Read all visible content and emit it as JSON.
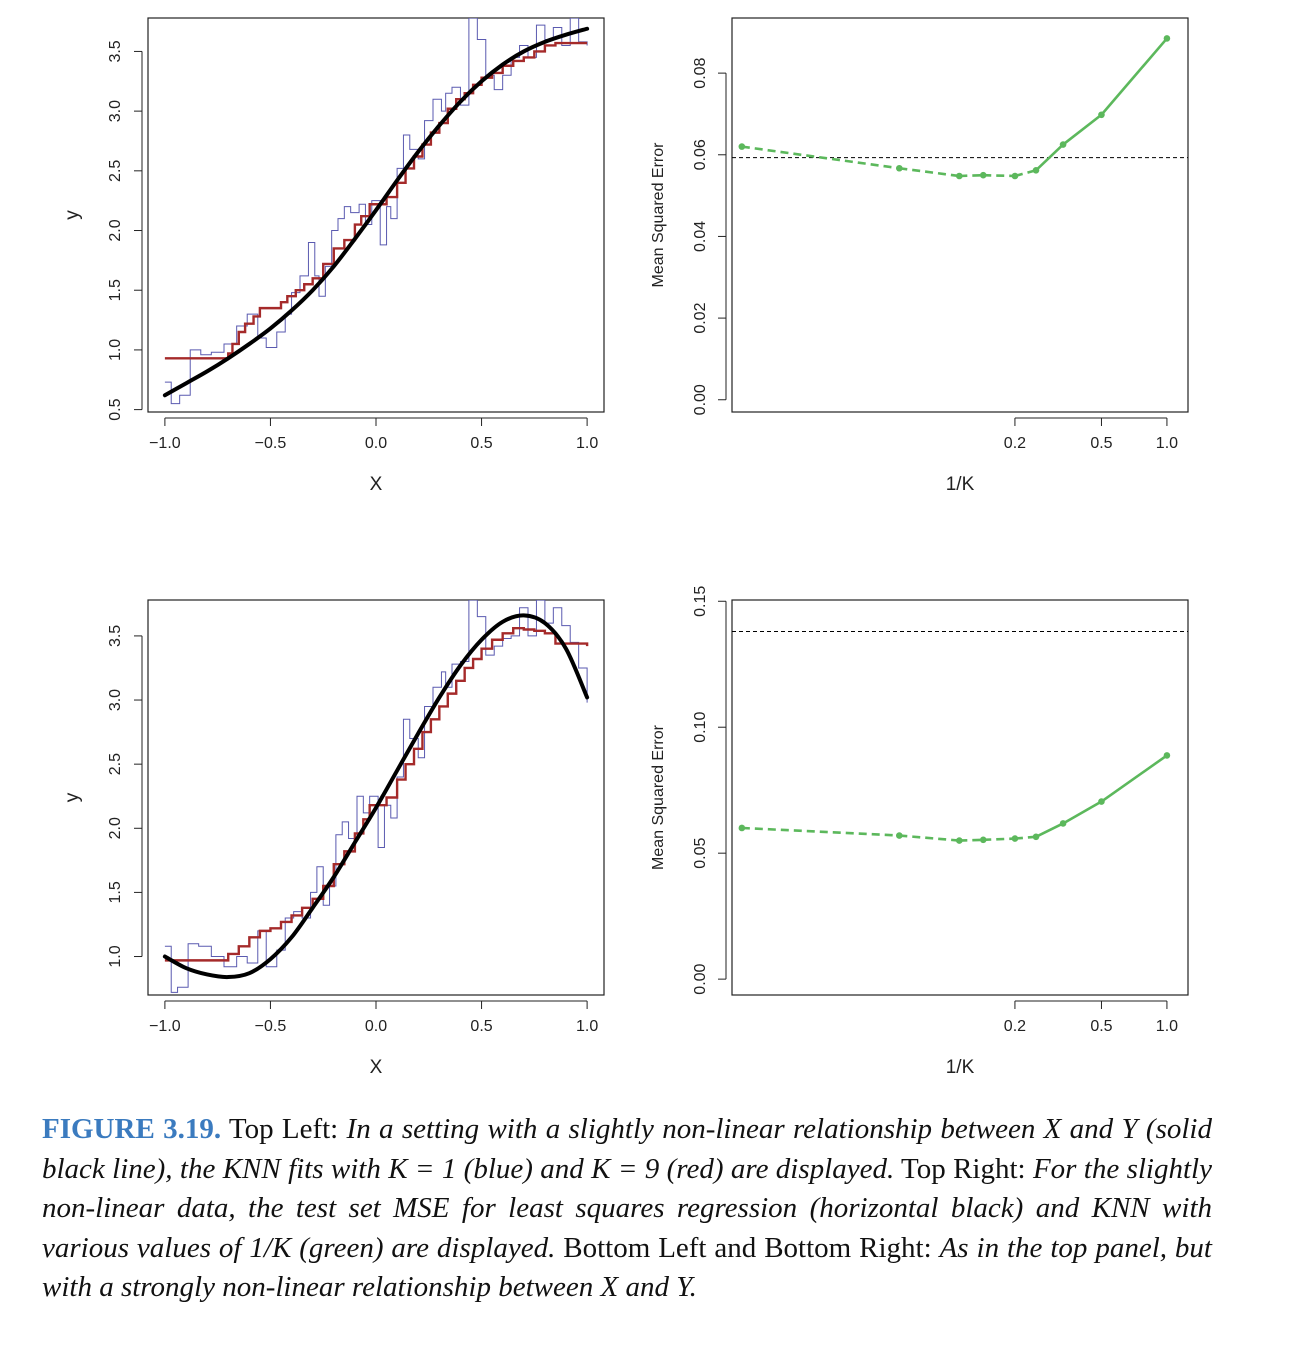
{
  "chart_data": [
    {
      "panel": "top-left",
      "type": "line",
      "title": "",
      "xlabel": "X",
      "ylabel": "y",
      "xlim": [
        -1.08,
        1.08
      ],
      "ylim": [
        0.48,
        3.78
      ],
      "xticks": [
        -1.0,
        -0.5,
        0.0,
        0.5,
        1.0
      ],
      "xtick_labels": [
        "−1.0",
        "−0.5",
        "0.0",
        "0.5",
        "1.0"
      ],
      "yticks": [
        0.5,
        1.0,
        1.5,
        2.0,
        2.5,
        3.0,
        3.5
      ],
      "ytick_labels": [
        "0.5",
        "1.0",
        "1.5",
        "2.0",
        "2.5",
        "3.0",
        "3.5"
      ],
      "grid": false,
      "series": [
        {
          "color": "#000000",
          "style": "solid-thick",
          "x": [
            -1.0,
            -0.9,
            -0.8,
            -0.7,
            -0.6,
            -0.5,
            -0.4,
            -0.3,
            -0.2,
            -0.1,
            0.0,
            0.1,
            0.2,
            0.3,
            0.4,
            0.5,
            0.6,
            0.7,
            0.8,
            0.9,
            1.0
          ],
          "values": [
            0.62,
            0.72,
            0.82,
            0.93,
            1.05,
            1.18,
            1.33,
            1.5,
            1.7,
            1.93,
            2.17,
            2.42,
            2.66,
            2.88,
            3.08,
            3.25,
            3.39,
            3.5,
            3.58,
            3.64,
            3.69
          ]
        },
        {
          "color": "#a52a2a",
          "style": "step",
          "x": [
            -1.0,
            -0.7,
            -0.68,
            -0.65,
            -0.62,
            -0.58,
            -0.55,
            -0.45,
            -0.42,
            -0.38,
            -0.34,
            -0.3,
            -0.25,
            -0.2,
            -0.15,
            -0.1,
            -0.07,
            -0.03,
            0.05,
            0.1,
            0.14,
            0.18,
            0.22,
            0.26,
            0.3,
            0.34,
            0.38,
            0.42,
            0.46,
            0.5,
            0.55,
            0.6,
            0.65,
            0.7,
            0.75,
            0.8,
            0.85,
            1.0
          ],
          "values": [
            0.93,
            0.97,
            1.05,
            1.15,
            1.22,
            1.28,
            1.35,
            1.4,
            1.45,
            1.5,
            1.55,
            1.6,
            1.72,
            1.85,
            1.92,
            2.05,
            2.12,
            2.22,
            2.28,
            2.4,
            2.52,
            2.62,
            2.72,
            2.82,
            2.9,
            3.02,
            3.1,
            3.15,
            3.22,
            3.28,
            3.32,
            3.38,
            3.42,
            3.45,
            3.5,
            3.55,
            3.57,
            3.57
          ]
        },
        {
          "color": "#5a5ab0",
          "style": "step-thin",
          "x": [
            -1.0,
            -0.97,
            -0.93,
            -0.88,
            -0.83,
            -0.78,
            -0.72,
            -0.66,
            -0.61,
            -0.56,
            -0.52,
            -0.47,
            -0.43,
            -0.4,
            -0.36,
            -0.32,
            -0.29,
            -0.27,
            -0.24,
            -0.21,
            -0.18,
            -0.15,
            -0.12,
            -0.08,
            -0.05,
            -0.02,
            0.02,
            0.05,
            0.07,
            0.1,
            0.13,
            0.16,
            0.2,
            0.23,
            0.27,
            0.31,
            0.33,
            0.36,
            0.4,
            0.44,
            0.48,
            0.52,
            0.56,
            0.6,
            0.64,
            0.68,
            0.72,
            0.76,
            0.8,
            0.84,
            0.88,
            0.92,
            0.96,
            1.0
          ],
          "values": [
            0.73,
            0.55,
            0.62,
            1.0,
            0.96,
            0.98,
            1.05,
            1.2,
            1.3,
            1.1,
            1.02,
            1.15,
            1.3,
            1.48,
            1.62,
            1.9,
            1.62,
            1.45,
            1.7,
            2.0,
            2.1,
            2.2,
            2.15,
            2.22,
            2.05,
            2.25,
            1.88,
            2.2,
            2.1,
            2.52,
            2.8,
            2.68,
            2.6,
            2.92,
            3.1,
            3.0,
            3.15,
            3.2,
            3.05,
            3.78,
            3.6,
            3.3,
            3.18,
            3.3,
            3.45,
            3.55,
            3.45,
            3.72,
            3.6,
            3.7,
            3.55,
            3.78,
            3.58,
            3.55
          ]
        }
      ]
    },
    {
      "panel": "top-right",
      "type": "line",
      "title": "",
      "xlabel": "1/K",
      "ylabel": "Mean Squared Error",
      "xscale": "log",
      "xlim": [
        0.01,
        1.25
      ],
      "ylim": [
        -0.003,
        0.0935
      ],
      "xticks": [
        0.2,
        0.5,
        1.0
      ],
      "xtick_labels": [
        "0.2",
        "0.5",
        "1.0"
      ],
      "yticks": [
        0.0,
        0.02,
        0.04,
        0.06,
        0.08
      ],
      "ytick_labels": [
        "0.00",
        "0.02",
        "0.04",
        "0.06",
        "0.08"
      ],
      "grid": false,
      "reference_line": {
        "color": "#000000",
        "style": "dashed",
        "value": 0.0593
      },
      "series": [
        {
          "color": "#5cb85c",
          "style": "dot-dash-to-solid",
          "x": [
            0.0111,
            0.0588,
            0.111,
            0.143,
            0.2,
            0.25,
            0.333,
            0.5,
            1.0
          ],
          "values": [
            0.062,
            0.0567,
            0.0548,
            0.055,
            0.0548,
            0.0562,
            0.0625,
            0.0698,
            0.0885
          ]
        }
      ]
    },
    {
      "panel": "bottom-left",
      "type": "line",
      "title": "",
      "xlabel": "X",
      "ylabel": "y",
      "xlim": [
        -1.08,
        1.08
      ],
      "ylim": [
        0.7,
        3.78
      ],
      "xticks": [
        -1.0,
        -0.5,
        0.0,
        0.5,
        1.0
      ],
      "xtick_labels": [
        "−1.0",
        "−0.5",
        "0.0",
        "0.5",
        "1.0"
      ],
      "yticks": [
        1.0,
        1.5,
        2.0,
        2.5,
        3.0,
        3.5
      ],
      "ytick_labels": [
        "1.0",
        "1.5",
        "2.0",
        "2.5",
        "3.0",
        "3.5"
      ],
      "grid": false,
      "series": [
        {
          "color": "#000000",
          "style": "solid-thick",
          "x": [
            -1.0,
            -0.9,
            -0.8,
            -0.7,
            -0.6,
            -0.5,
            -0.4,
            -0.3,
            -0.2,
            -0.1,
            0.0,
            0.1,
            0.2,
            0.3,
            0.4,
            0.5,
            0.6,
            0.7,
            0.8,
            0.9,
            1.0
          ],
          "values": [
            1.0,
            0.91,
            0.86,
            0.84,
            0.87,
            0.98,
            1.15,
            1.38,
            1.62,
            1.89,
            2.16,
            2.45,
            2.74,
            3.02,
            3.27,
            3.47,
            3.61,
            3.66,
            3.6,
            3.4,
            3.02
          ]
        },
        {
          "color": "#a52a2a",
          "style": "step",
          "x": [
            -1.0,
            -0.7,
            -0.65,
            -0.6,
            -0.55,
            -0.5,
            -0.45,
            -0.4,
            -0.35,
            -0.3,
            -0.25,
            -0.2,
            -0.15,
            -0.1,
            -0.06,
            -0.03,
            0.05,
            0.1,
            0.14,
            0.18,
            0.22,
            0.26,
            0.3,
            0.34,
            0.38,
            0.42,
            0.46,
            0.5,
            0.55,
            0.6,
            0.65,
            0.7,
            0.75,
            0.8,
            0.85,
            1.0
          ],
          "values": [
            0.97,
            1.02,
            1.08,
            1.15,
            1.2,
            1.22,
            1.27,
            1.32,
            1.38,
            1.45,
            1.55,
            1.72,
            1.82,
            1.96,
            2.07,
            2.18,
            2.24,
            2.38,
            2.5,
            2.62,
            2.75,
            2.85,
            2.95,
            3.05,
            3.15,
            3.25,
            3.32,
            3.4,
            3.47,
            3.52,
            3.56,
            3.55,
            3.54,
            3.52,
            3.44,
            3.42
          ]
        },
        {
          "color": "#5a5ab0",
          "style": "step-thin",
          "x": [
            -1.0,
            -0.97,
            -0.94,
            -0.89,
            -0.84,
            -0.78,
            -0.72,
            -0.66,
            -0.61,
            -0.56,
            -0.52,
            -0.47,
            -0.43,
            -0.39,
            -0.35,
            -0.31,
            -0.28,
            -0.25,
            -0.22,
            -0.19,
            -0.16,
            -0.13,
            -0.09,
            -0.06,
            -0.03,
            0.01,
            0.04,
            0.07,
            0.1,
            0.13,
            0.16,
            0.2,
            0.23,
            0.27,
            0.31,
            0.33,
            0.36,
            0.4,
            0.44,
            0.48,
            0.52,
            0.56,
            0.6,
            0.64,
            0.68,
            0.72,
            0.76,
            0.8,
            0.84,
            0.88,
            0.92,
            0.96,
            1.0
          ],
          "values": [
            1.08,
            0.72,
            0.76,
            1.1,
            1.08,
            1.0,
            0.92,
            1.0,
            0.95,
            1.2,
            0.92,
            1.05,
            1.3,
            1.35,
            1.3,
            1.5,
            1.7,
            1.4,
            1.55,
            1.95,
            2.05,
            1.92,
            2.25,
            2.12,
            2.25,
            1.85,
            2.18,
            2.08,
            2.4,
            2.85,
            2.7,
            2.55,
            2.95,
            3.1,
            3.22,
            3.1,
            3.28,
            3.3,
            3.78,
            3.65,
            3.35,
            3.42,
            3.48,
            3.5,
            3.72,
            3.5,
            3.78,
            3.6,
            3.72,
            3.58,
            3.45,
            3.25,
            2.98
          ]
        }
      ]
    },
    {
      "panel": "bottom-right",
      "type": "line",
      "title": "",
      "xlabel": "1/K",
      "ylabel": "Mean Squared Error",
      "xscale": "log",
      "xlim": [
        0.01,
        1.25
      ],
      "ylim": [
        -0.0063,
        0.1505
      ],
      "xticks": [
        0.2,
        0.5,
        1.0
      ],
      "xtick_labels": [
        "0.2",
        "0.5",
        "1.0"
      ],
      "yticks": [
        0.0,
        0.05,
        0.1,
        0.15
      ],
      "ytick_labels": [
        "0.00",
        "0.05",
        "0.10",
        "0.15"
      ],
      "grid": false,
      "reference_line": {
        "color": "#000000",
        "style": "dashed",
        "value": 0.138
      },
      "series": [
        {
          "color": "#5cb85c",
          "style": "dot-dash-to-solid",
          "x": [
            0.0111,
            0.0588,
            0.111,
            0.143,
            0.2,
            0.25,
            0.333,
            0.5,
            1.0
          ],
          "values": [
            0.06,
            0.057,
            0.055,
            0.0553,
            0.0558,
            0.0565,
            0.0618,
            0.0705,
            0.0888
          ]
        }
      ]
    }
  ],
  "caption": {
    "label": "FIGURE 3.19.",
    "s1": " Top Left: ",
    "i1": "In a setting with a slightly non-linear relationship between X and Y (solid black line), the KNN fits with K = 1 (blue) and K = 9 (red) are displayed.",
    "s2": " Top Right: ",
    "i2": "For the slightly non-linear data, the test set MSE for least squares regression (horizontal black) and KNN with various values of 1/K (green) are displayed.",
    "s3": " Bottom Left and Bottom Right: ",
    "i3": "As in the top panel, but with a strongly non-linear relationship between X and Y."
  },
  "colors": {
    "true_curve": "#000000",
    "knn_k1": "#5a5ab0",
    "knn_k9": "#a52a2a",
    "test_mse": "#5cb85c",
    "caption_label": "#3b7bbf"
  }
}
